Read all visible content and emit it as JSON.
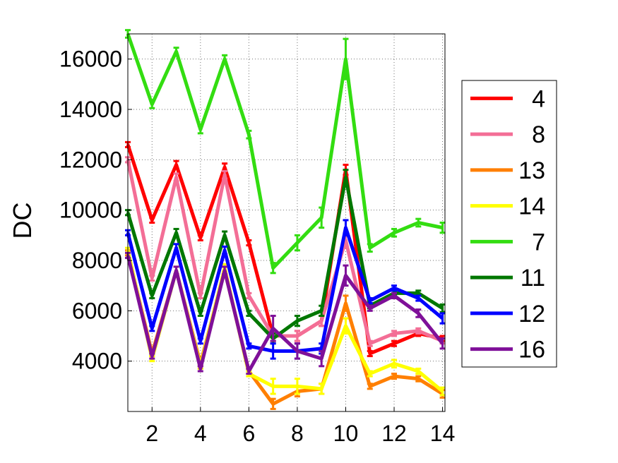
{
  "chart_data": {
    "type": "line",
    "title": "",
    "xlabel": "",
    "ylabel": "DC",
    "xlim": [
      1,
      14.1
    ],
    "ylim": [
      2000,
      17000
    ],
    "xticks": [
      2,
      4,
      6,
      8,
      10,
      12,
      14
    ],
    "yticks": [
      4000,
      6000,
      8000,
      10000,
      12000,
      14000,
      16000
    ],
    "grid": true,
    "legend_position": "right",
    "x": [
      1,
      2,
      3,
      4,
      5,
      6,
      7,
      8,
      9,
      10,
      11,
      12,
      13,
      14
    ],
    "series": [
      {
        "name": "4",
        "color": "#ff0000",
        "values": [
          12600,
          9600,
          11800,
          8900,
          11700,
          8700,
          5000,
          5000,
          5600,
          11600,
          4300,
          4700,
          5100,
          4900
        ],
        "error": [
          100,
          100,
          150,
          100,
          150,
          100,
          200,
          200,
          200,
          200,
          100,
          100,
          100,
          100
        ]
      },
      {
        "name": "8",
        "color": "#f36e96",
        "values": [
          12000,
          7300,
          11300,
          6600,
          11400,
          6600,
          5000,
          5000,
          5600,
          8800,
          4700,
          5100,
          5200,
          4800
        ],
        "error": [
          100,
          100,
          150,
          100,
          150,
          100,
          200,
          200,
          200,
          300,
          100,
          100,
          100,
          100
        ]
      },
      {
        "name": "13",
        "color": "#ff7f00",
        "values": [
          8300,
          4300,
          7600,
          3900,
          7600,
          3600,
          2300,
          2800,
          2900,
          6300,
          3000,
          3400,
          3300,
          2700
        ],
        "error": [
          100,
          100,
          150,
          100,
          150,
          100,
          200,
          200,
          200,
          300,
          100,
          100,
          100,
          150
        ]
      },
      {
        "name": "14",
        "color": "#ffff00",
        "values": [
          8400,
          4100,
          7600,
          3800,
          7700,
          3500,
          3000,
          3000,
          2900,
          5400,
          3500,
          3900,
          3600,
          2800
        ],
        "error": [
          100,
          100,
          150,
          100,
          150,
          100,
          300,
          300,
          200,
          300,
          100,
          150,
          100,
          150
        ]
      },
      {
        "name": "7",
        "color": "#33dd11",
        "values": [
          17000,
          14200,
          16300,
          13200,
          16000,
          13000,
          7700,
          8700,
          9700,
          16000,
          8500,
          9100,
          9500,
          9300
        ],
        "error": [
          150,
          150,
          150,
          150,
          150,
          150,
          200,
          300,
          400,
          800,
          150,
          150,
          150,
          200
        ]
      },
      {
        "name": "11",
        "color": "#007700",
        "values": [
          9900,
          6600,
          9100,
          5900,
          9000,
          5900,
          4900,
          5600,
          6000,
          11300,
          6200,
          6700,
          6700,
          6100
        ],
        "error": [
          100,
          100,
          150,
          100,
          150,
          100,
          200,
          200,
          200,
          300,
          100,
          100,
          100,
          150
        ]
      },
      {
        "name": "12",
        "color": "#0000ff",
        "values": [
          9100,
          5300,
          8500,
          4800,
          8400,
          4600,
          4400,
          4400,
          4500,
          9300,
          6400,
          6900,
          6500,
          5700
        ],
        "error": [
          100,
          100,
          150,
          100,
          150,
          100,
          300,
          300,
          200,
          300,
          100,
          100,
          100,
          200
        ]
      },
      {
        "name": "16",
        "color": "#7f1099",
        "values": [
          8200,
          4200,
          7600,
          3700,
          7600,
          3600,
          5300,
          4400,
          4100,
          7400,
          6100,
          6600,
          5900,
          4700
        ],
        "error": [
          100,
          100,
          150,
          100,
          150,
          100,
          500,
          300,
          300,
          400,
          100,
          100,
          150,
          200
        ]
      }
    ]
  }
}
